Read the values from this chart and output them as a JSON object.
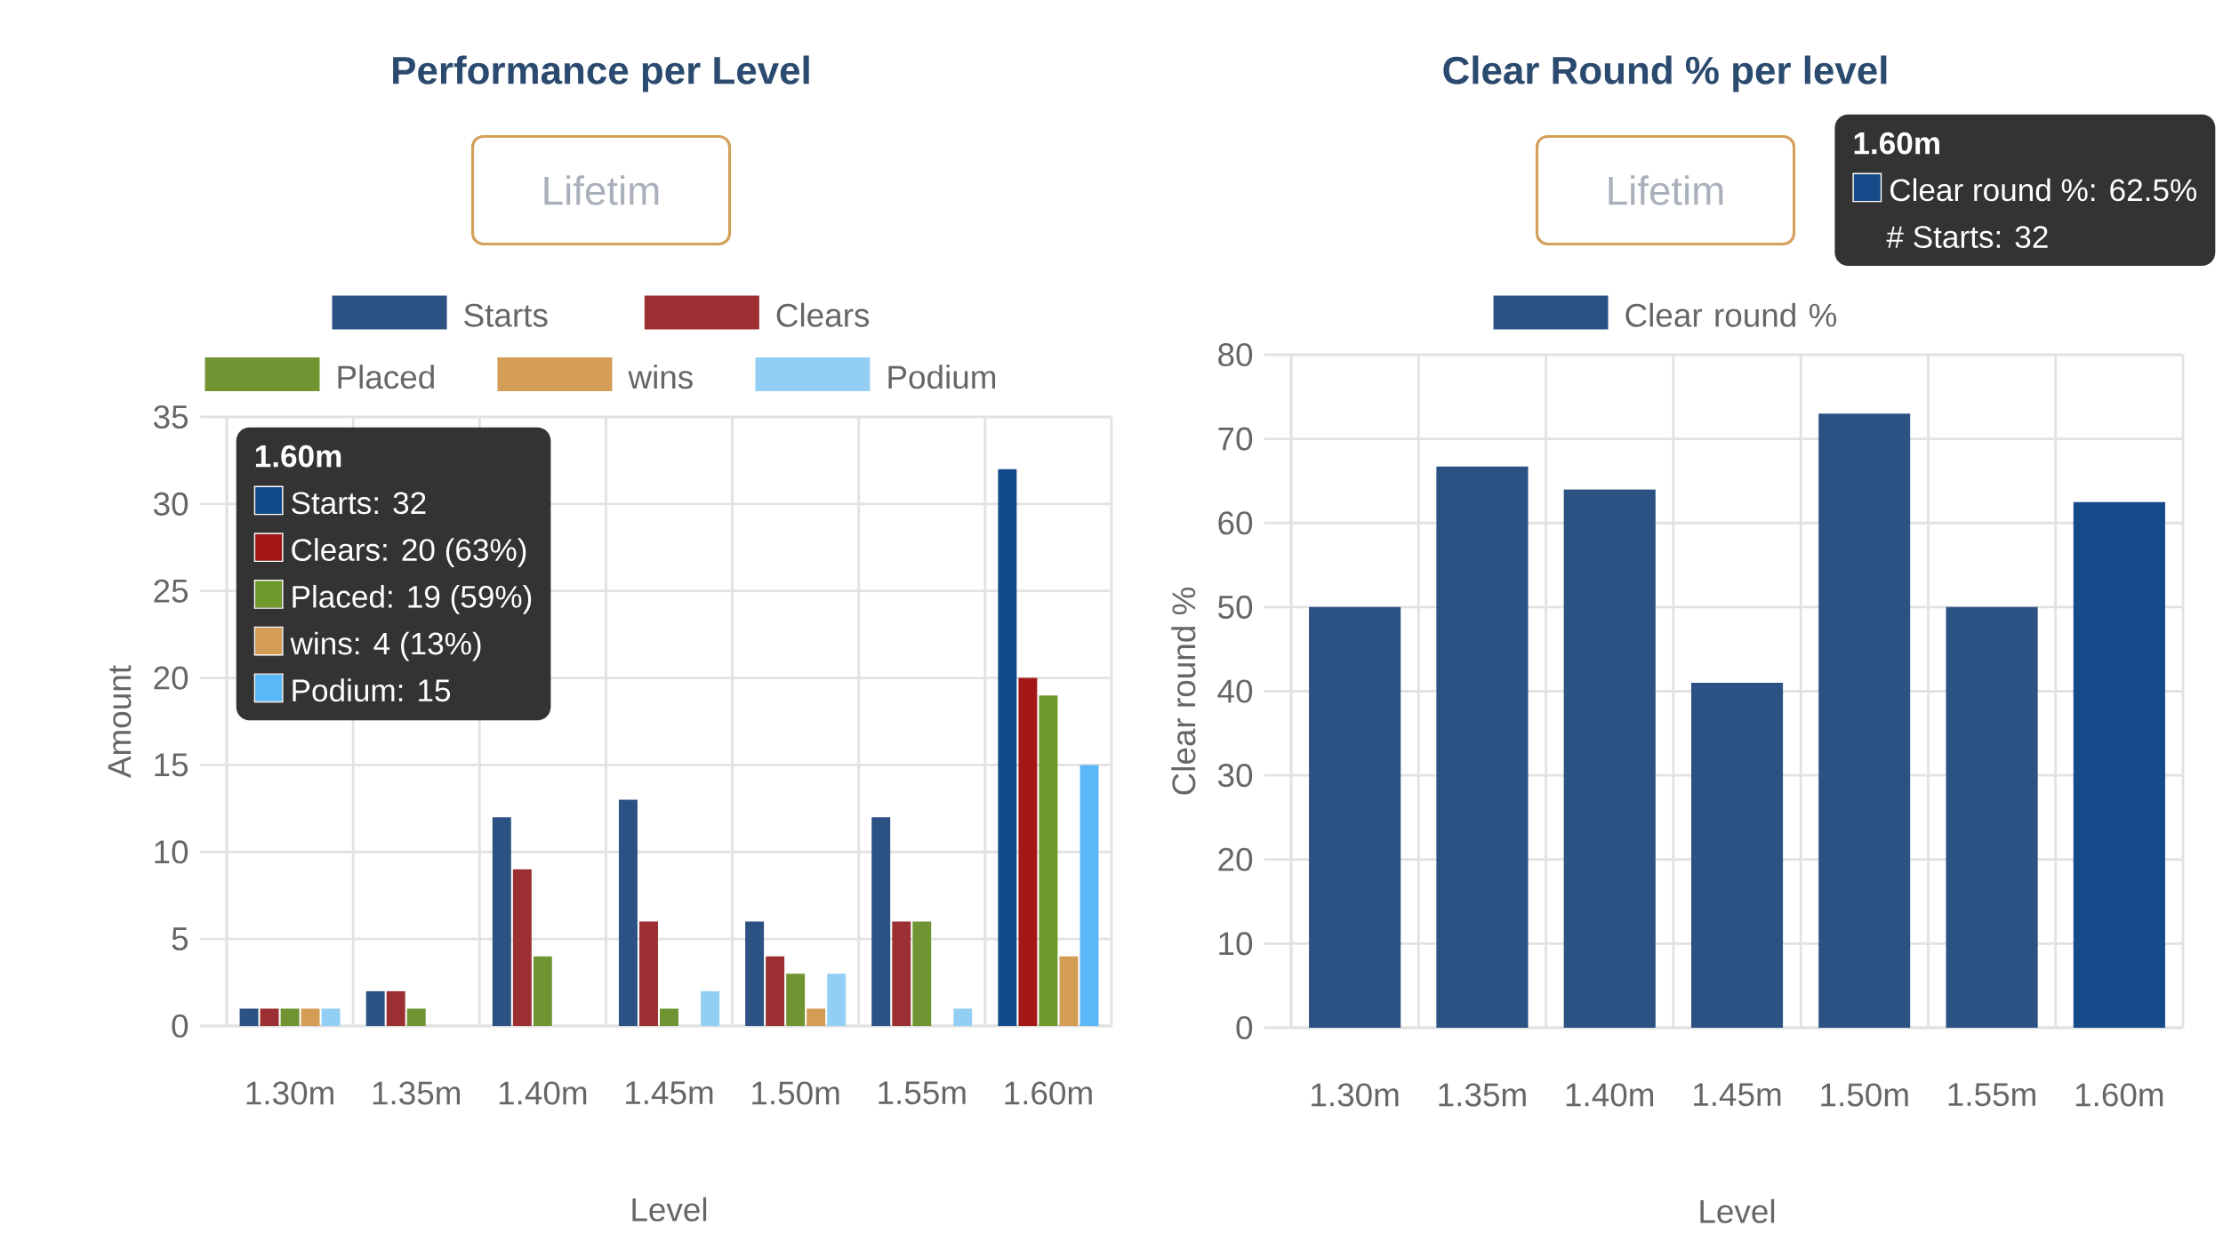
{
  "chart_data": [
    {
      "type": "bar",
      "title": "Performance per Level",
      "subtitle": "Lifetim",
      "categories": [
        "1.30m",
        "1.35m",
        "1.40m",
        "1.45m",
        "1.50m",
        "1.55m",
        "1.60m"
      ],
      "xlabel": "Level",
      "ylabel": "Amount",
      "ylim": [
        0,
        35
      ],
      "yticks": [
        0,
        5,
        10,
        15,
        20,
        25,
        30,
        35
      ],
      "grid": true,
      "legend": "top",
      "series": [
        {
          "name": "Starts",
          "colors": [
            "#2b5283",
            "#2b5283",
            "#2b5283",
            "#2b5283",
            "#2b5283",
            "#2b5283",
            "#134a8a"
          ],
          "values": [
            1,
            2,
            12,
            13,
            6,
            12,
            32
          ]
        },
        {
          "name": "Clears",
          "colors": [
            "#9b2f31",
            "#9b2f31",
            "#9b2f31",
            "#9b2f31",
            "#9b2f31",
            "#9b2f31",
            "#a31616"
          ],
          "values": [
            1,
            2,
            9,
            6,
            4,
            6,
            20
          ]
        },
        {
          "name": "Placed",
          "colors": [
            "#6f9431",
            "#6f9431",
            "#6f9431",
            "#6f9431",
            "#6f9431",
            "#6f9431",
            "#6f9a2b"
          ],
          "values": [
            1,
            1,
            4,
            1,
            3,
            6,
            19
          ]
        },
        {
          "name": "wins",
          "colors": [
            "#d49d56",
            "#d49d56",
            "#d49d56",
            "#d49d56",
            "#d49d56",
            "#d49d56",
            "#d49d56"
          ],
          "values": [
            1,
            0,
            0,
            0,
            1,
            0,
            4
          ]
        },
        {
          "name": "Podium",
          "colors": [
            "#93cef5",
            "#93cef5",
            "#93cef5",
            "#93cef5",
            "#93cef5",
            "#93cef5",
            "#5ab8f9"
          ],
          "values": [
            1,
            0,
            0,
            2,
            3,
            1,
            15
          ]
        }
      ],
      "annotations": [
        "1.60m",
        "Starts: 32",
        "Clears: 20 (63%)",
        "Placed: 19 (59%)",
        "wins: 4 (13%)",
        "Podium: 15"
      ]
    },
    {
      "type": "bar",
      "title": "Clear Round % per level",
      "subtitle": "Lifetim",
      "categories": [
        "1.30m",
        "1.35m",
        "1.40m",
        "1.45m",
        "1.50m",
        "1.55m",
        "1.60m"
      ],
      "xlabel": "Level",
      "ylabel": "Clear round %",
      "ylim": [
        0,
        80
      ],
      "yticks": [
        0,
        10,
        20,
        30,
        40,
        50,
        60,
        70,
        80
      ],
      "grid": true,
      "legend": "top",
      "series": [
        {
          "name": "Clear round %",
          "colors": [
            "#2b5283",
            "#2b5283",
            "#2b5283",
            "#2b5283",
            "#2b5283",
            "#2b5283",
            "#164a8a"
          ],
          "values": [
            50,
            66.7,
            64,
            41,
            73,
            50,
            62.5
          ]
        }
      ],
      "annotations": [
        "1.60m",
        "Clear round %: 62.5%",
        "# Starts: 32"
      ]
    }
  ]
}
